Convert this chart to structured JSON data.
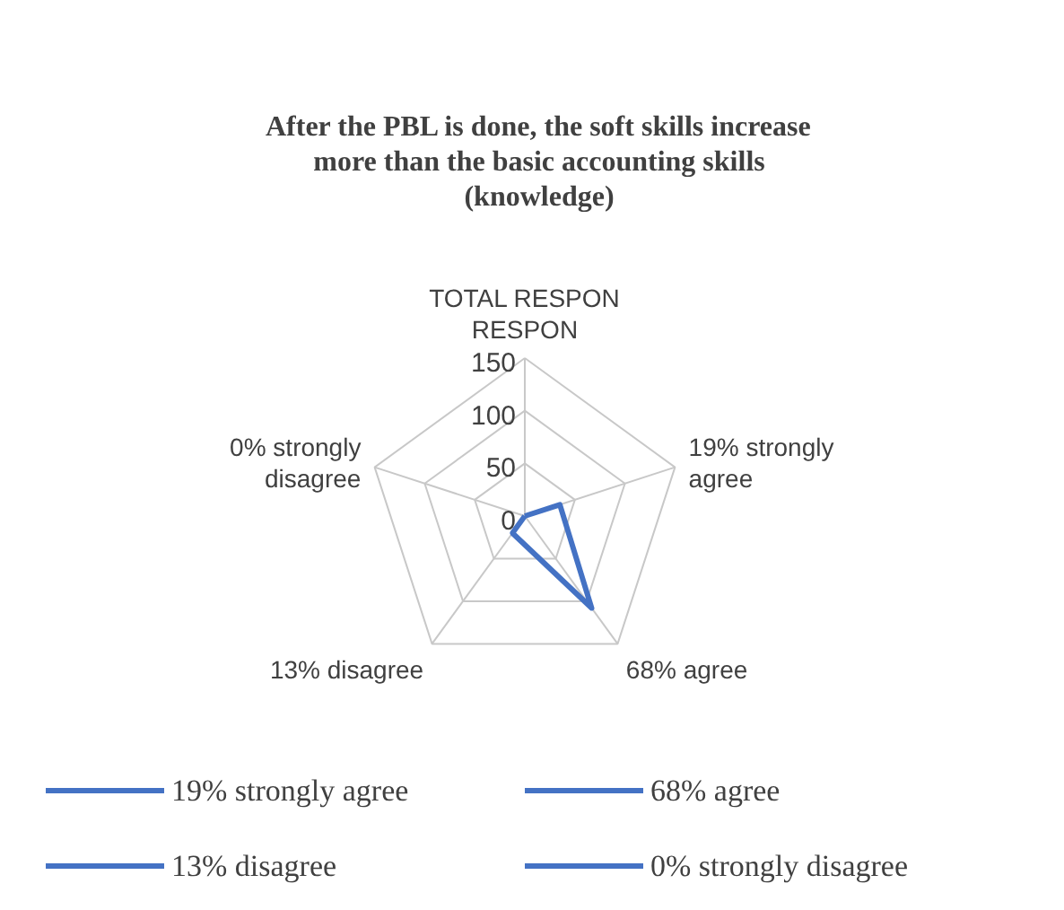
{
  "chart_data": {
    "type": "radar",
    "title": "After the PBL is done, the soft skills increase more than the basic accounting skills (knowledge)",
    "categories": [
      "TOTAL RESPON RESPON",
      "19% strongly agree",
      "68% agree",
      "13% disagree",
      "0% strongly disagree"
    ],
    "series": [
      {
        "color": "#4472c4",
        "values": [
          0,
          35,
          108,
          20,
          0
        ]
      }
    ],
    "ylim": [
      0,
      150
    ],
    "yticks": [
      0,
      50,
      100,
      150
    ],
    "grid": true,
    "annotations": [
      "19% strongly agree",
      "68% agree",
      "13% disagree",
      "0% strongly disagree"
    ]
  }
}
